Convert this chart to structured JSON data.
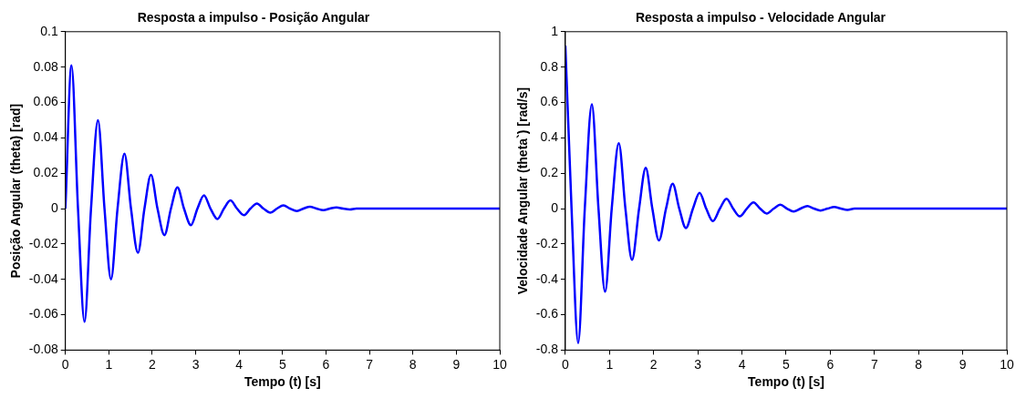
{
  "chart_data": [
    {
      "type": "line",
      "title": "Resposta a impulso - Posição Angular",
      "xlabel": "Tempo (t) [s]",
      "ylabel": "Posição Angular (theta) [rad]",
      "xlim": [
        0,
        10
      ],
      "xticks": [
        0,
        1,
        2,
        3,
        4,
        5,
        6,
        7,
        8,
        9,
        10
      ],
      "ylim": [
        -0.08,
        0.1
      ],
      "yticks": [
        -0.08,
        -0.06,
        -0.04,
        -0.02,
        0,
        0.02,
        0.04,
        0.06,
        0.08,
        0.1
      ],
      "grid": false,
      "legend": false,
      "marker": "none",
      "line_style": "solid",
      "series": [
        {
          "color": "#0000ff",
          "x": [
            0,
            0.14,
            0.29,
            0.44,
            0.59,
            0.75,
            0.9,
            1.05,
            1.2,
            1.36,
            1.51,
            1.67,
            1.82,
            1.97,
            2.12,
            2.28,
            2.43,
            2.58,
            2.73,
            2.89,
            3.04,
            3.19,
            3.34,
            3.5,
            3.65,
            3.8,
            3.95,
            4.11,
            4.26,
            4.41,
            4.56,
            4.72,
            4.87,
            5.02,
            5.17,
            5.33,
            5.48,
            5.63,
            5.78,
            5.94,
            6.09,
            6.24,
            6.39,
            6.55,
            6.7,
            10
          ],
          "values": [
            0,
            0.081,
            0,
            -0.064,
            0,
            0.05,
            0,
            -0.04,
            0,
            0.031,
            0,
            -0.025,
            0,
            0.019,
            0,
            -0.015,
            0,
            0.012,
            0,
            -0.0094,
            0,
            0.0075,
            0,
            -0.0059,
            0,
            0.0046,
            0,
            -0.0037,
            0,
            0.0029,
            0,
            -0.0023,
            0,
            0.0018,
            0,
            -0.0014,
            0,
            0.0011,
            0,
            -0.0009,
            0,
            0.0007,
            0,
            -0.0005,
            0,
            0
          ]
        }
      ]
    },
    {
      "type": "line",
      "title": "Resposta a impulso - Velocidade Angular",
      "xlabel": "Tempo (t) [s]",
      "ylabel": "Velocidade Angular (theta`) [rad/s]",
      "xlim": [
        0,
        10
      ],
      "xticks": [
        0,
        1,
        2,
        3,
        4,
        5,
        6,
        7,
        8,
        9,
        10
      ],
      "ylim": [
        -0.8,
        1
      ],
      "yticks": [
        -0.8,
        -0.6,
        -0.4,
        -0.2,
        0,
        0.2,
        0.4,
        0.6,
        0.8,
        1
      ],
      "grid": false,
      "legend": false,
      "marker": "none",
      "line_style": "solid",
      "series": [
        {
          "color": "#0000ff",
          "x": [
            0,
            0.14,
            0.29,
            0.44,
            0.6,
            0.75,
            0.9,
            1.05,
            1.21,
            1.36,
            1.51,
            1.67,
            1.82,
            1.97,
            2.12,
            2.28,
            2.43,
            2.58,
            2.73,
            2.89,
            3.04,
            3.19,
            3.34,
            3.5,
            3.65,
            3.8,
            3.95,
            4.11,
            4.26,
            4.41,
            4.56,
            4.72,
            4.87,
            5.02,
            5.17,
            5.33,
            5.48,
            5.63,
            5.78,
            5.94,
            6.09,
            6.24,
            6.39,
            6.55,
            10
          ],
          "values": [
            0.92,
            0,
            -0.76,
            0,
            0.59,
            0,
            -0.47,
            0,
            0.37,
            0,
            -0.29,
            0,
            0.23,
            0,
            -0.18,
            0,
            0.14,
            0,
            -0.11,
            0,
            0.089,
            0,
            -0.071,
            0,
            0.056,
            0,
            -0.044,
            0,
            0.035,
            0,
            -0.028,
            0,
            0.022,
            0,
            -0.017,
            0,
            0.014,
            0,
            -0.011,
            0,
            0.009,
            0,
            -0.007,
            0,
            0
          ]
        }
      ]
    }
  ]
}
